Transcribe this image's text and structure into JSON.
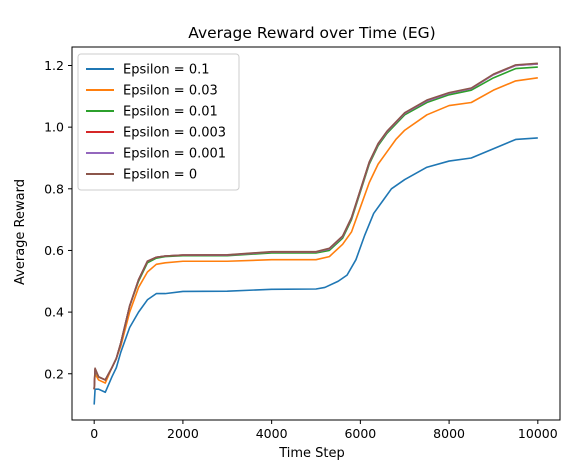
{
  "chart_data": {
    "type": "line",
    "title": "Average Reward over Time (EG)",
    "xlabel": "Time Step",
    "ylabel": "Average Reward",
    "xlim": [
      -500,
      10500
    ],
    "ylim": [
      0.05,
      1.26
    ],
    "xticks": [
      0,
      2000,
      4000,
      6000,
      8000,
      10000
    ],
    "xtick_labels": [
      "0",
      "2000",
      "4000",
      "6000",
      "8000",
      "10000"
    ],
    "yticks": [
      0.2,
      0.4,
      0.6,
      0.8,
      1.0,
      1.2
    ],
    "ytick_labels": [
      "0.2",
      "0.4",
      "0.6",
      "0.8",
      "1.0",
      "1.2"
    ],
    "grid": false,
    "legend_position": "upper-left",
    "series": [
      {
        "name": "Epsilon = 0.1",
        "color": "#1f77b4",
        "points": [
          [
            0,
            0.1
          ],
          [
            20,
            0.15
          ],
          [
            100,
            0.15
          ],
          [
            250,
            0.14
          ],
          [
            400,
            0.19
          ],
          [
            500,
            0.22
          ],
          [
            600,
            0.27
          ],
          [
            800,
            0.35
          ],
          [
            1000,
            0.4
          ],
          [
            1200,
            0.44
          ],
          [
            1400,
            0.46
          ],
          [
            1600,
            0.46
          ],
          [
            2000,
            0.467
          ],
          [
            3000,
            0.468
          ],
          [
            4000,
            0.474
          ],
          [
            5000,
            0.475
          ],
          [
            5200,
            0.48
          ],
          [
            5500,
            0.5
          ],
          [
            5700,
            0.52
          ],
          [
            5900,
            0.57
          ],
          [
            6100,
            0.65
          ],
          [
            6300,
            0.72
          ],
          [
            6500,
            0.76
          ],
          [
            6700,
            0.8
          ],
          [
            7000,
            0.83
          ],
          [
            7500,
            0.87
          ],
          [
            8000,
            0.89
          ],
          [
            8500,
            0.9
          ],
          [
            9000,
            0.93
          ],
          [
            9500,
            0.96
          ],
          [
            10000,
            0.965
          ]
        ]
      },
      {
        "name": "Epsilon = 0.03",
        "color": "#ff7f0e",
        "points": [
          [
            0,
            0.15
          ],
          [
            20,
            0.2
          ],
          [
            100,
            0.18
          ],
          [
            250,
            0.17
          ],
          [
            400,
            0.22
          ],
          [
            500,
            0.25
          ],
          [
            600,
            0.29
          ],
          [
            800,
            0.4
          ],
          [
            1000,
            0.48
          ],
          [
            1200,
            0.53
          ],
          [
            1400,
            0.555
          ],
          [
            1600,
            0.56
          ],
          [
            2000,
            0.565
          ],
          [
            3000,
            0.565
          ],
          [
            4000,
            0.57
          ],
          [
            5000,
            0.57
          ],
          [
            5300,
            0.58
          ],
          [
            5600,
            0.62
          ],
          [
            5800,
            0.66
          ],
          [
            6000,
            0.74
          ],
          [
            6200,
            0.82
          ],
          [
            6400,
            0.88
          ],
          [
            6600,
            0.92
          ],
          [
            6800,
            0.96
          ],
          [
            7000,
            0.99
          ],
          [
            7500,
            1.04
          ],
          [
            8000,
            1.07
          ],
          [
            8500,
            1.08
          ],
          [
            9000,
            1.12
          ],
          [
            9500,
            1.15
          ],
          [
            10000,
            1.16
          ]
        ]
      },
      {
        "name": "Epsilon = 0.01",
        "color": "#2ca02c",
        "points": [
          [
            0,
            0.15
          ],
          [
            20,
            0.21
          ],
          [
            100,
            0.19
          ],
          [
            250,
            0.18
          ],
          [
            400,
            0.22
          ],
          [
            500,
            0.25
          ],
          [
            600,
            0.3
          ],
          [
            800,
            0.42
          ],
          [
            1000,
            0.5
          ],
          [
            1200,
            0.56
          ],
          [
            1400,
            0.575
          ],
          [
            1600,
            0.58
          ],
          [
            2000,
            0.583
          ],
          [
            3000,
            0.583
          ],
          [
            4000,
            0.592
          ],
          [
            5000,
            0.592
          ],
          [
            5300,
            0.6
          ],
          [
            5600,
            0.64
          ],
          [
            5800,
            0.7
          ],
          [
            6000,
            0.79
          ],
          [
            6200,
            0.88
          ],
          [
            6400,
            0.94
          ],
          [
            6600,
            0.98
          ],
          [
            6800,
            1.01
          ],
          [
            7000,
            1.04
          ],
          [
            7500,
            1.08
          ],
          [
            8000,
            1.105
          ],
          [
            8500,
            1.12
          ],
          [
            9000,
            1.16
          ],
          [
            9500,
            1.19
          ],
          [
            10000,
            1.195
          ]
        ]
      },
      {
        "name": "Epsilon = 0.003",
        "color": "#d62728",
        "points": [
          [
            0,
            0.15
          ],
          [
            20,
            0.215
          ],
          [
            100,
            0.19
          ],
          [
            250,
            0.18
          ],
          [
            400,
            0.22
          ],
          [
            500,
            0.25
          ],
          [
            600,
            0.3
          ],
          [
            800,
            0.42
          ],
          [
            1000,
            0.505
          ],
          [
            1200,
            0.565
          ],
          [
            1400,
            0.578
          ],
          [
            1600,
            0.582
          ],
          [
            2000,
            0.585
          ],
          [
            3000,
            0.585
          ],
          [
            4000,
            0.595
          ],
          [
            5000,
            0.595
          ],
          [
            5300,
            0.605
          ],
          [
            5600,
            0.645
          ],
          [
            5800,
            0.705
          ],
          [
            6000,
            0.795
          ],
          [
            6200,
            0.885
          ],
          [
            6400,
            0.945
          ],
          [
            6600,
            0.985
          ],
          [
            6800,
            1.015
          ],
          [
            7000,
            1.045
          ],
          [
            7500,
            1.085
          ],
          [
            8000,
            1.11
          ],
          [
            8500,
            1.125
          ],
          [
            9000,
            1.17
          ],
          [
            9500,
            1.2
          ],
          [
            10000,
            1.205
          ]
        ]
      },
      {
        "name": "Epsilon = 0.001",
        "color": "#9467bd",
        "points": [
          [
            0,
            0.15
          ],
          [
            20,
            0.215
          ],
          [
            100,
            0.19
          ],
          [
            250,
            0.18
          ],
          [
            400,
            0.22
          ],
          [
            500,
            0.25
          ],
          [
            600,
            0.3
          ],
          [
            800,
            0.42
          ],
          [
            1000,
            0.505
          ],
          [
            1200,
            0.565
          ],
          [
            1400,
            0.578
          ],
          [
            1600,
            0.582
          ],
          [
            2000,
            0.585
          ],
          [
            3000,
            0.585
          ],
          [
            4000,
            0.595
          ],
          [
            5000,
            0.595
          ],
          [
            5300,
            0.605
          ],
          [
            5600,
            0.645
          ],
          [
            5800,
            0.705
          ],
          [
            6000,
            0.795
          ],
          [
            6200,
            0.885
          ],
          [
            6400,
            0.945
          ],
          [
            6600,
            0.985
          ],
          [
            6800,
            1.015
          ],
          [
            7000,
            1.045
          ],
          [
            7500,
            1.085
          ],
          [
            8000,
            1.11
          ],
          [
            8500,
            1.125
          ],
          [
            9000,
            1.17
          ],
          [
            9500,
            1.2
          ],
          [
            10000,
            1.205
          ]
        ]
      },
      {
        "name": "Epsilon = 0",
        "color": "#8c564b",
        "points": [
          [
            0,
            0.15
          ],
          [
            20,
            0.218
          ],
          [
            100,
            0.19
          ],
          [
            250,
            0.18
          ],
          [
            400,
            0.22
          ],
          [
            500,
            0.25
          ],
          [
            600,
            0.3
          ],
          [
            800,
            0.42
          ],
          [
            1000,
            0.505
          ],
          [
            1200,
            0.565
          ],
          [
            1400,
            0.578
          ],
          [
            1600,
            0.582
          ],
          [
            2000,
            0.585
          ],
          [
            3000,
            0.586
          ],
          [
            4000,
            0.596
          ],
          [
            5000,
            0.596
          ],
          [
            5300,
            0.607
          ],
          [
            5600,
            0.647
          ],
          [
            5800,
            0.707
          ],
          [
            6000,
            0.797
          ],
          [
            6200,
            0.887
          ],
          [
            6400,
            0.947
          ],
          [
            6600,
            0.987
          ],
          [
            6800,
            1.017
          ],
          [
            7000,
            1.047
          ],
          [
            7500,
            1.088
          ],
          [
            8000,
            1.112
          ],
          [
            8500,
            1.127
          ],
          [
            9000,
            1.172
          ],
          [
            9500,
            1.202
          ],
          [
            10000,
            1.207
          ]
        ]
      }
    ]
  }
}
